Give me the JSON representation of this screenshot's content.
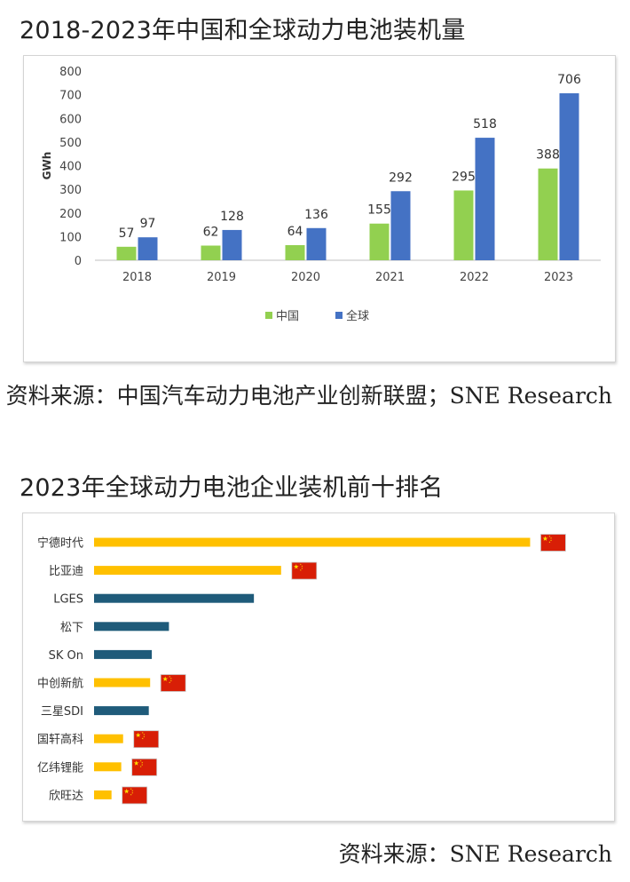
{
  "chart1": {
    "heading": "2018-2023年中国和全球动力电池装机量",
    "source": "资料来源：中国汽车动力电池产业创新联盟；SNE Research",
    "chart_data": {
      "type": "bar",
      "title": "2018-2023年中国和全球动力电池装机量",
      "ylabel": "GWh",
      "xlabel": "",
      "categories": [
        "2018",
        "2019",
        "2020",
        "2021",
        "2022",
        "2023"
      ],
      "series": [
        {
          "name": "中国",
          "color": "#92d050",
          "values": [
            57,
            62,
            64,
            155,
            295,
            388
          ]
        },
        {
          "name": "全球",
          "color": "#4472c4",
          "values": [
            97,
            128,
            136,
            292,
            518,
            706
          ]
        }
      ],
      "ylim": [
        0,
        800
      ],
      "yticks": [
        0,
        100,
        200,
        300,
        400,
        500,
        600,
        700,
        800
      ],
      "legend": "bottom-center",
      "grid": false
    }
  },
  "chart2": {
    "heading": "2023年全球动力电池企业装机前十排名",
    "source": "资料来源：SNE Research",
    "chart_data": {
      "type": "bar",
      "orientation": "horizontal",
      "title": "2023年全球动力电池企业装机前十排名",
      "categories": [
        "宁德时代",
        "比亚迪",
        "LGES",
        "松下",
        "SK On",
        "中创新航",
        "三星SDI",
        "国轩高科",
        "亿纬锂能",
        "欣旺达"
      ],
      "values": [
        259.7,
        111.4,
        95.2,
        44.6,
        34.4,
        33.4,
        32.6,
        17.3,
        16.2,
        10.4
      ],
      "colors": [
        "#ffc000",
        "#ffc000",
        "#1f5b7a",
        "#1f5b7a",
        "#1f5b7a",
        "#ffc000",
        "#1f5b7a",
        "#ffc000",
        "#ffc000",
        "#ffc000"
      ],
      "china_flag": [
        true,
        true,
        false,
        false,
        false,
        true,
        false,
        true,
        true,
        true
      ],
      "xlim": [
        0,
        260
      ],
      "axis_visible": false,
      "grid": false
    }
  }
}
